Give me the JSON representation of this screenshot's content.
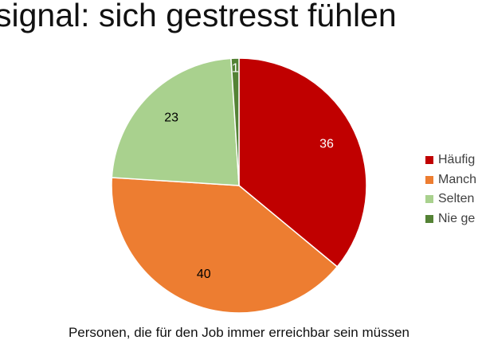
{
  "chart_data": {
    "type": "pie",
    "title": "signal: sich gestresst fühlen",
    "xlabel": "Personen, die für den Job immer erreichbar sein müssen",
    "categories": [
      "Häufig",
      "Manch",
      "Selten",
      "Nie ge"
    ],
    "values": [
      36,
      40,
      23,
      1
    ],
    "colors": [
      "#c00000",
      "#ed7d31",
      "#a9d18e",
      "#548235"
    ],
    "data_label_colors": [
      "#ffffff",
      "#000000",
      "#000000",
      "#ffffff"
    ],
    "legend": "right",
    "start_angle_deg": 0,
    "direction": "clockwise"
  }
}
